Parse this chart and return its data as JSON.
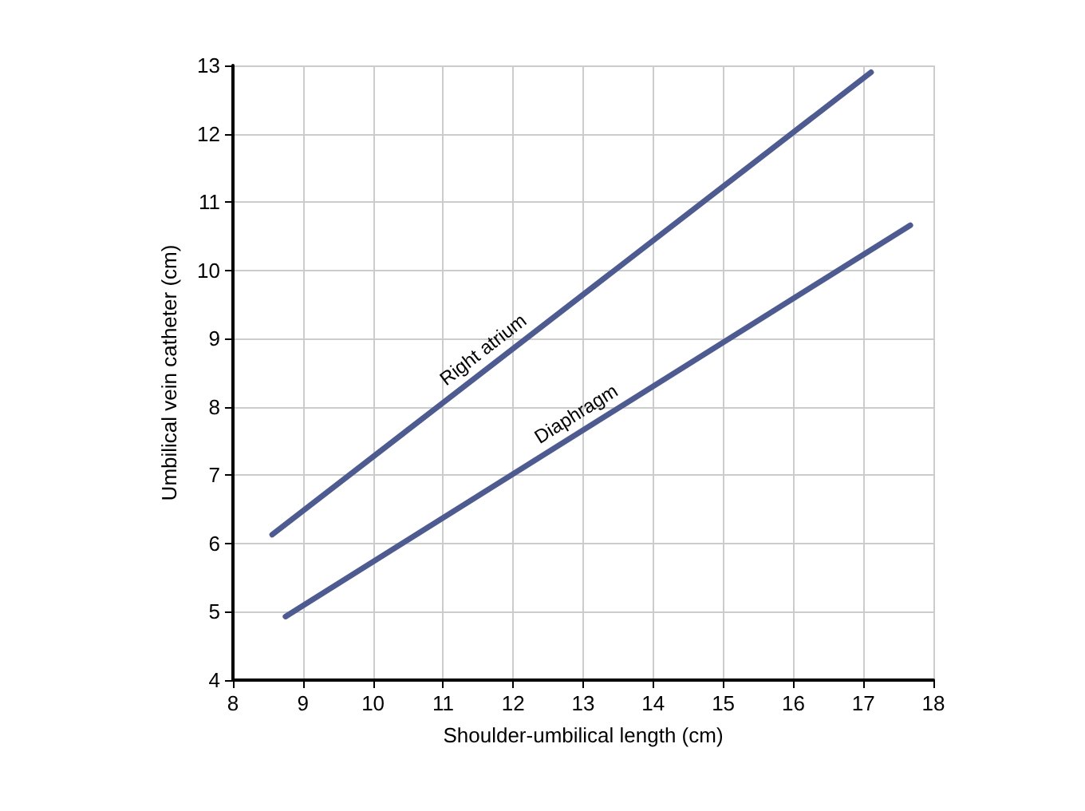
{
  "chart_data": {
    "type": "line",
    "xlabel": "Shoulder-umbilical length (cm)",
    "ylabel": "Umbilical vein catheter (cm)",
    "series": [
      {
        "name": "Right atrium",
        "x": [
          8.56,
          17.11
        ],
        "values": [
          6.13,
          12.9
        ],
        "color": "#4e5b91"
      },
      {
        "name": "Diaphragm",
        "x": [
          8.75,
          17.67
        ],
        "values": [
          4.93,
          10.66
        ],
        "color": "#4e5b91"
      }
    ],
    "xlim": [
      8,
      18
    ],
    "xticks": [
      8,
      9,
      10,
      11,
      12,
      13,
      14,
      15,
      16,
      17,
      18
    ],
    "ylim": [
      4,
      13
    ],
    "yticks": [
      4,
      5,
      6,
      7,
      8,
      9,
      10,
      11,
      12,
      13
    ],
    "grid": true,
    "marker": "none",
    "line_style": "solid"
  }
}
